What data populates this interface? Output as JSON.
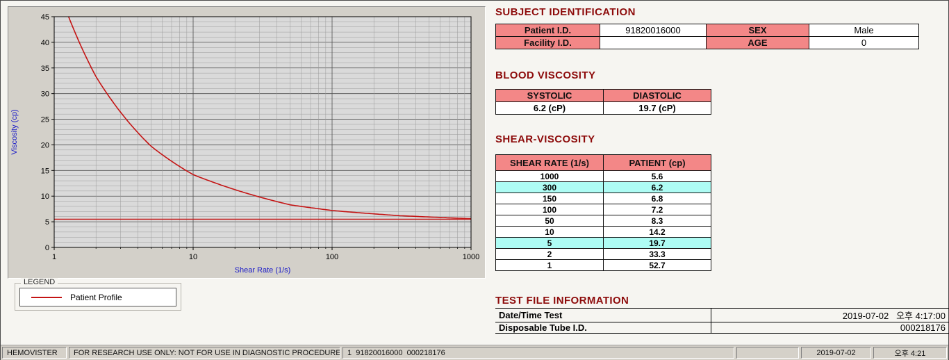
{
  "colors": {
    "heading": "#8d0b0b",
    "table_header_bg": "#f38787",
    "highlight_bg": "#aefcf4",
    "curve": "#c41414",
    "axis_label": "#1818c8"
  },
  "legend": {
    "title": "LEGEND",
    "series": "Patient Profile"
  },
  "chart_data": {
    "type": "line",
    "x_scale": "log",
    "x": [
      1,
      2,
      5,
      10,
      50,
      100,
      150,
      300,
      1000
    ],
    "series": [
      {
        "name": "Patient Profile",
        "values": [
          52.7,
          33.3,
          19.7,
          14.2,
          8.3,
          7.2,
          6.8,
          6.2,
          5.6
        ]
      }
    ],
    "baseline": 5.5,
    "xlim": [
      1,
      1000
    ],
    "ylim": [
      0,
      45
    ],
    "xticks": [
      1,
      10,
      100,
      1000
    ],
    "yticks": [
      0,
      5,
      10,
      15,
      20,
      25,
      30,
      35,
      40,
      45
    ],
    "xlabel": "Shear Rate (1/s)",
    "ylabel": "Viscosity (cp)",
    "grid": true,
    "legend_position": "below-left"
  },
  "subject": {
    "title": "SUBJECT IDENTIFICATION",
    "rows": [
      {
        "label1": "Patient I.D.",
        "value1": "91820016000",
        "label2": "SEX",
        "value2": "Male"
      },
      {
        "label1": "Facility I.D.",
        "value1": "",
        "label2": "AGE",
        "value2": "0"
      }
    ]
  },
  "blood_viscosity": {
    "title": "BLOOD VISCOSITY",
    "headers": [
      "SYSTOLIC",
      "DIASTOLIC"
    ],
    "values": [
      "6.2 (cP)",
      "19.7 (cP)"
    ]
  },
  "shear_viscosity": {
    "title": "SHEAR-VISCOSITY",
    "headers": [
      "SHEAR RATE (1/s)",
      "PATIENT (cp)"
    ],
    "rows": [
      {
        "rate": "1000",
        "value": "5.6",
        "highlight": false
      },
      {
        "rate": "300",
        "value": "6.2",
        "highlight": true
      },
      {
        "rate": "150",
        "value": "6.8",
        "highlight": false
      },
      {
        "rate": "100",
        "value": "7.2",
        "highlight": false
      },
      {
        "rate": "50",
        "value": "8.3",
        "highlight": false
      },
      {
        "rate": "10",
        "value": "14.2",
        "highlight": false
      },
      {
        "rate": "5",
        "value": "19.7",
        "highlight": true
      },
      {
        "rate": "2",
        "value": "33.3",
        "highlight": false
      },
      {
        "rate": "1",
        "value": "52.7",
        "highlight": false
      }
    ]
  },
  "test_file": {
    "title": "TEST FILE INFORMATION",
    "rows": [
      {
        "label": "Date/Time Test",
        "value": "2019-07-02   오후 4:17:00"
      },
      {
        "label": "Disposable Tube I.D.",
        "value": "000218176"
      }
    ]
  },
  "statusbar": {
    "items": [
      "HEMOVISTER",
      "FOR RESEARCH USE ONLY: NOT FOR USE IN DIAGNOSTIC PROCEDURES",
      "1  91820016000  000218176",
      "",
      "2019-07-02",
      "오후 4:21"
    ]
  }
}
